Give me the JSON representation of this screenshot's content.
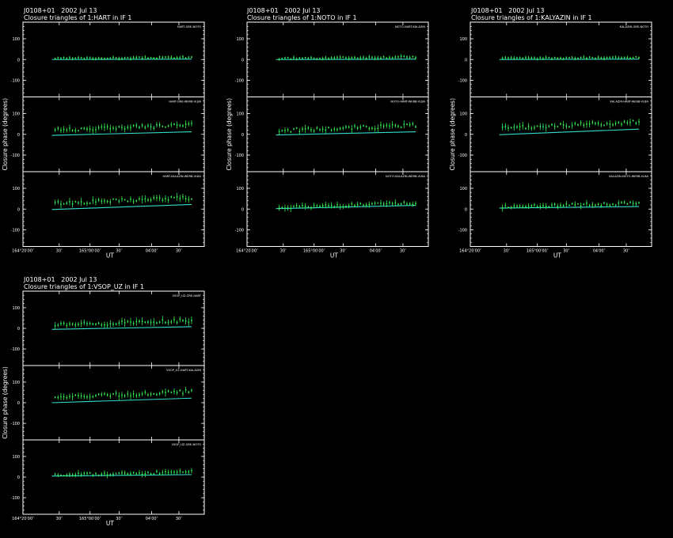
{
  "colors": {
    "background": "#000000",
    "frame": "#ffffff",
    "data": "#33ee55",
    "model": "#33ddcc"
  },
  "chart_data": {
    "type": "scatter",
    "ylabel": "Closure phase  (degrees)",
    "xlabel": "UT",
    "ylim": [
      -180,
      180
    ],
    "y_ticks": [
      100,
      0,
      -100
    ],
    "x_ticks": [
      "164°20′00″",
      "30″",
      "165°00′00″",
      "30″",
      "04′00″",
      "30″"
    ],
    "panels": [
      {
        "source_line": "J0108+01   2002 Jul 13",
        "title_line": "Closure triangles of 1:HART in IF 1",
        "triangles": [
          {
            "label": "HART-GRE-NOTO",
            "model_start": 0,
            "model_end": 2,
            "data_start": 5,
            "data_end": 10,
            "scatter": 7
          },
          {
            "label": "HART-GRE-WERB-VLBA",
            "model_start": -5,
            "model_end": 12,
            "data_start": 20,
            "data_end": 45,
            "scatter": 18
          },
          {
            "label": "HART-KALAZIN-WERB-VLBA",
            "model_start": -2,
            "model_end": 22,
            "data_start": 28,
            "data_end": 55,
            "scatter": 18
          }
        ]
      },
      {
        "source_line": "J0108+01   2002 Jul 13",
        "title_line": "Closure triangles of 1:NOTO in IF 1",
        "triangles": [
          {
            "label": "NOTO-HART-KALAZIN",
            "model_start": 0,
            "model_end": 2,
            "data_start": 5,
            "data_end": 12,
            "scatter": 8
          },
          {
            "label": "NOTO-HART-WERB-VLBA",
            "model_start": -3,
            "model_end": 12,
            "data_start": 18,
            "data_end": 42,
            "scatter": 18
          },
          {
            "label": "NOTO-KALAZIN-WERB-VLBA",
            "model_start": 2,
            "model_end": 18,
            "data_start": 8,
            "data_end": 28,
            "scatter": 15
          }
        ]
      },
      {
        "source_line": "J0108+01   2002 Jul 13",
        "title_line": "Closure triangles of 1:KALYAZIN in IF 1",
        "triangles": [
          {
            "label": "KALAZIN-GRE-NOTO",
            "model_start": 0,
            "model_end": 2,
            "data_start": 5,
            "data_end": 10,
            "scatter": 7
          },
          {
            "label": "KALAZIN-HART-WERB-VLBA",
            "model_start": -2,
            "model_end": 25,
            "data_start": 28,
            "data_end": 60,
            "scatter": 18
          },
          {
            "label": "KALAZIN-NOTO-WERB-VLBA",
            "model_start": 5,
            "model_end": 12,
            "data_start": 10,
            "data_end": 28,
            "scatter": 14
          }
        ]
      },
      {
        "source_line": "J0108+01   2002 Jul 13",
        "title_line": "Closure triangles of 1:VSOP_UZ in IF 1",
        "triangles": [
          {
            "label": "VSOP_UZ-GRE-HART",
            "model_start": -5,
            "model_end": 8,
            "data_start": 15,
            "data_end": 38,
            "scatter": 18
          },
          {
            "label": "VSOP_UZ-HART-KALAZIN",
            "model_start": 0,
            "model_end": 22,
            "data_start": 25,
            "data_end": 55,
            "scatter": 18
          },
          {
            "label": "VSOP_UZ-GRE-NOTO",
            "model_start": 5,
            "model_end": 12,
            "data_start": 10,
            "data_end": 25,
            "scatter": 14
          }
        ]
      }
    ]
  }
}
